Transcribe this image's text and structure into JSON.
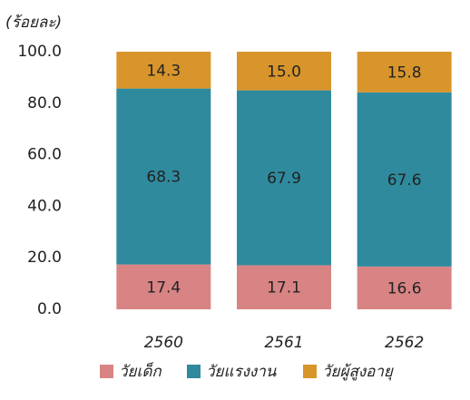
{
  "chart_data": {
    "type": "stacked_bar",
    "ylabel": "(ร้อยละ)",
    "categories": [
      "2560",
      "2561",
      "2562"
    ],
    "series": [
      {
        "name": "วัยเด็ก",
        "color": "#d98484",
        "values": [
          17.4,
          17.1,
          16.6
        ],
        "value_labels": [
          "17.4",
          "17.1",
          "16.6"
        ]
      },
      {
        "name": "วัยแรงงาน",
        "color": "#2f8a9e",
        "values": [
          68.3,
          67.9,
          67.6
        ],
        "value_labels": [
          "68.3",
          "67.9",
          "67.6"
        ]
      },
      {
        "name": "วัยผู้สูงอายุ",
        "color": "#d8952c",
        "values": [
          14.3,
          15.0,
          15.8
        ],
        "value_labels": [
          "14.3",
          "15.0",
          "15.8"
        ]
      }
    ],
    "ylim": [
      0,
      100
    ],
    "yticks": [
      {
        "value": 0,
        "label": "0.0"
      },
      {
        "value": 20,
        "label": "20.0"
      },
      {
        "value": 40,
        "label": "40.0"
      },
      {
        "value": 60,
        "label": "60.0"
      },
      {
        "value": 80,
        "label": "80.0"
      },
      {
        "value": 100,
        "label": "100.0"
      }
    ],
    "legend": "bottom"
  }
}
